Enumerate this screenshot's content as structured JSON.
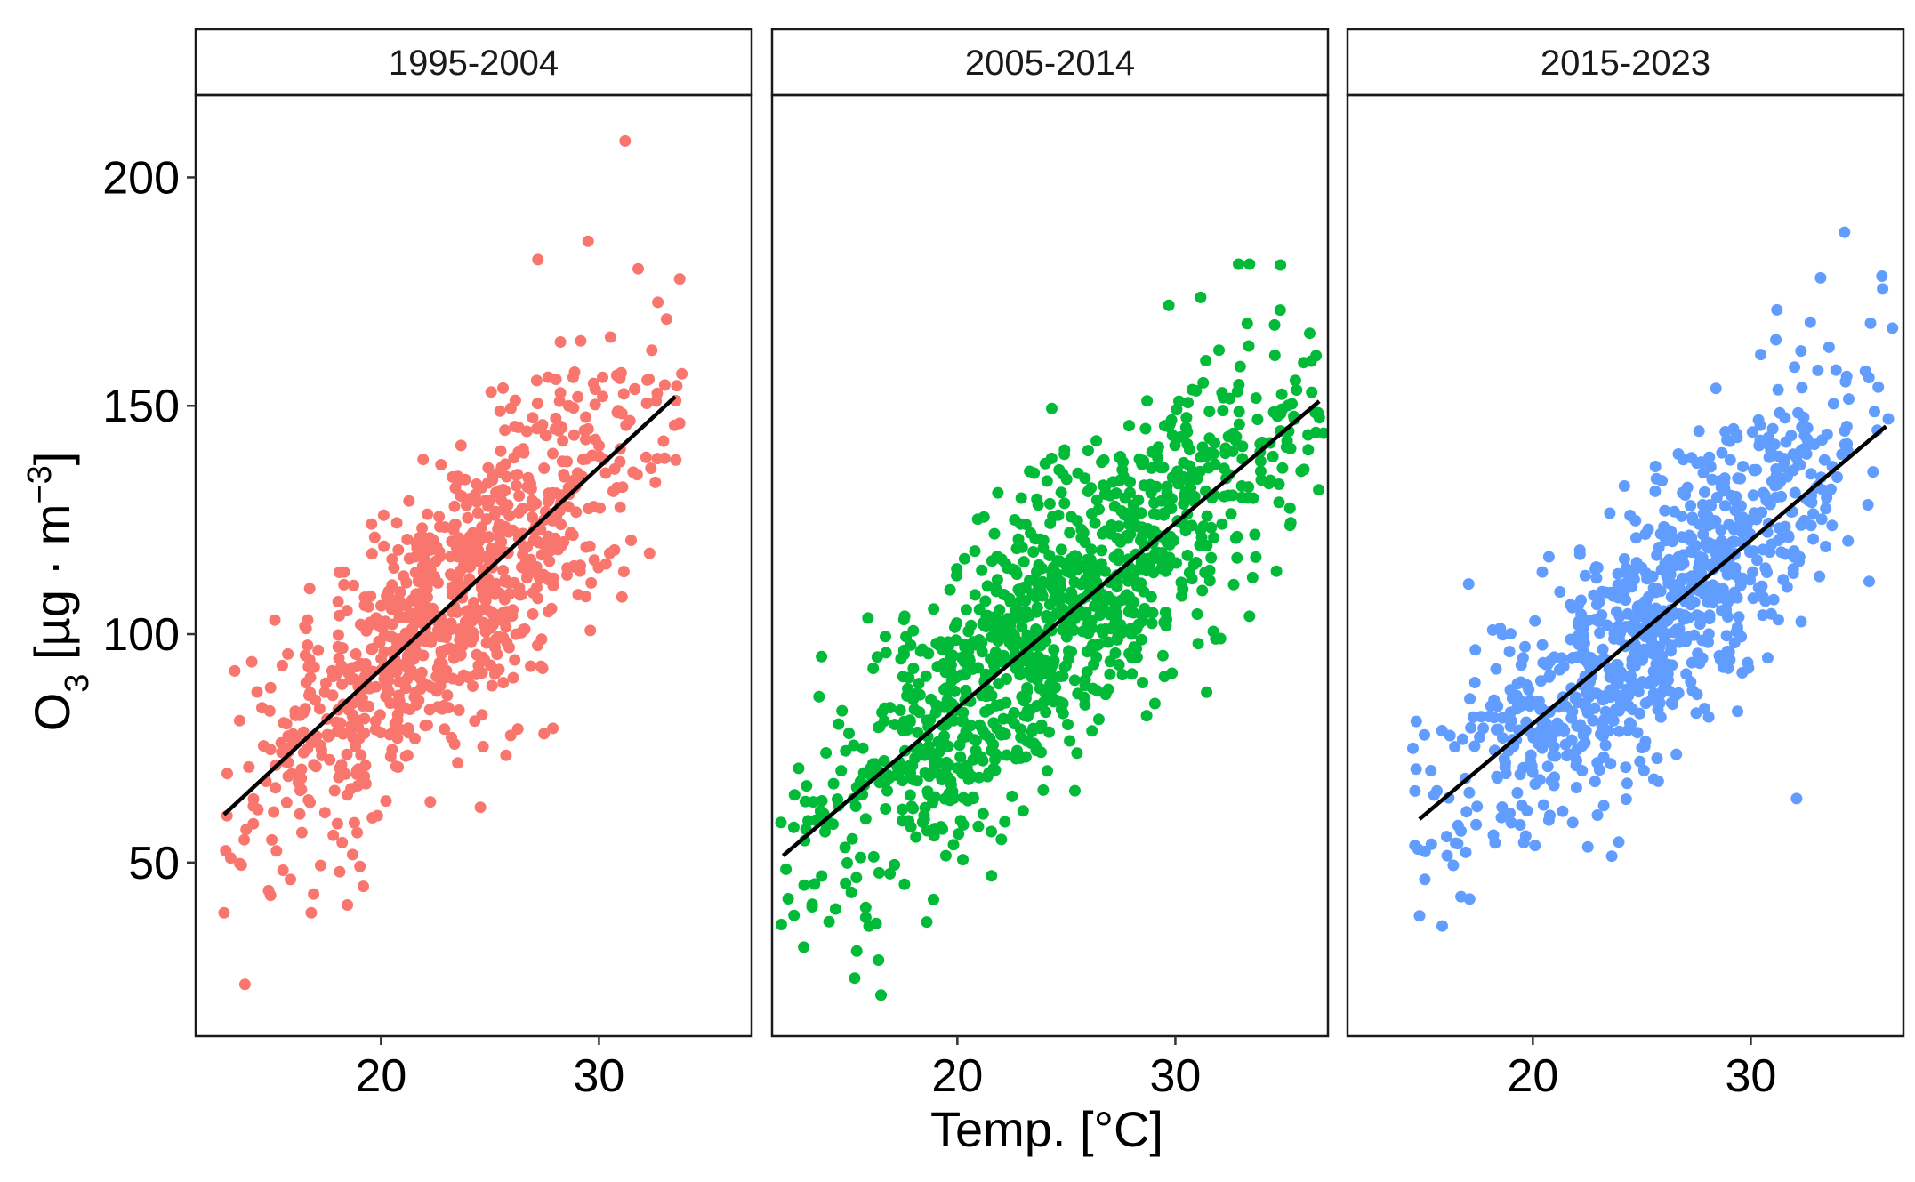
{
  "chart_data": {
    "type": "scatter",
    "title": "",
    "xlabel": "Temp. [°C]",
    "ylabel_main": "O",
    "ylabel_sub": "3",
    "ylabel_unit": " [µg · m",
    "ylabel_sup": "−3",
    "ylabel_close": "]",
    "xlim": [
      11.5,
      37.0
    ],
    "ylim": [
      12,
      218
    ],
    "xticks": [
      20,
      30
    ],
    "yticks": [
      50,
      100,
      150,
      200
    ],
    "xtick_labels": [
      "20",
      "30"
    ],
    "ytick_labels": [
      "50",
      "100",
      "150",
      "200"
    ],
    "panels": [
      {
        "label": "1995-2004",
        "color": "#F8766D",
        "n_points": 900,
        "x_range": [
          12.8,
          33.8
        ],
        "fit": {
          "x0": 12.8,
          "y0": 60.5,
          "x1": 33.5,
          "y1": 152
        },
        "outliers": [
          [
            31.2,
            208
          ],
          [
            29.5,
            186
          ],
          [
            27.2,
            182
          ],
          [
            31.8,
            180
          ],
          [
            12.8,
            39
          ],
          [
            16.8,
            39
          ],
          [
            33.8,
            157
          ],
          [
            33.1,
            169
          ]
        ]
      },
      {
        "label": "2005-2014",
        "color": "#00BA38",
        "n_points": 1100,
        "x_range": [
          11.9,
          36.8
        ],
        "fit": {
          "x0": 12.0,
          "y0": 51.5,
          "x1": 36.6,
          "y1": 151
        },
        "outliers": [
          [
            16.5,
            21
          ],
          [
            32.9,
            181
          ],
          [
            33.4,
            181
          ],
          [
            29.7,
            172
          ],
          [
            33.3,
            168
          ],
          [
            36.8,
            144
          ],
          [
            18.6,
            37
          ],
          [
            15.8,
            38
          ]
        ]
      },
      {
        "label": "2015-2023",
        "color": "#619CFF",
        "n_points": 900,
        "x_range": [
          14.5,
          36.5
        ],
        "fit": {
          "x0": 14.8,
          "y0": 59.5,
          "x1": 36.2,
          "y1": 145.5
        },
        "outliers": [
          [
            34.3,
            188
          ],
          [
            33.2,
            178
          ],
          [
            31.2,
            171
          ],
          [
            36.5,
            167
          ],
          [
            32.3,
            162
          ],
          [
            17.1,
            42
          ],
          [
            32.1,
            64
          ],
          [
            14.5,
            75
          ]
        ]
      }
    ]
  }
}
